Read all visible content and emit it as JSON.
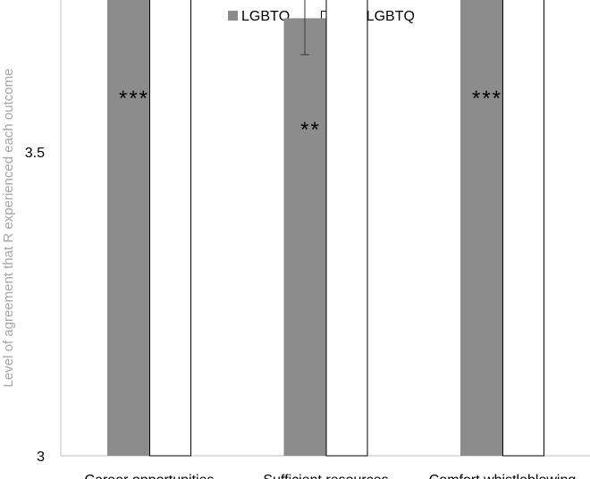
{
  "chart_data": {
    "type": "bar",
    "title": "",
    "xlabel": "",
    "ylabel": "Level of agreement that R experienced each outcome",
    "ylim": [
      3,
      4.5
    ],
    "yticks": [
      "3",
      "3.5",
      "4",
      "4.5"
    ],
    "categories": [
      "Career opportunities",
      "Sufficient resources",
      "Comfort whistleblowing"
    ],
    "series": [
      {
        "name": "LGBTQ",
        "values": [
          3.94,
          3.72,
          3.915
        ],
        "errors": [
          0.055,
          0.06,
          0.06
        ],
        "color": "#8c8c8c"
      },
      {
        "name": "Non-LGBTQ",
        "values": [
          4.045,
          3.81,
          4.035
        ],
        "errors": [
          0.01,
          0.012,
          0.01
        ],
        "color": "#ffffff"
      }
    ],
    "significance": [
      "***",
      "**",
      "***"
    ],
    "legend": "top-center",
    "grid": false
  },
  "colors": {
    "axis": "#bfbfbf",
    "bar_outline": "#000000"
  }
}
